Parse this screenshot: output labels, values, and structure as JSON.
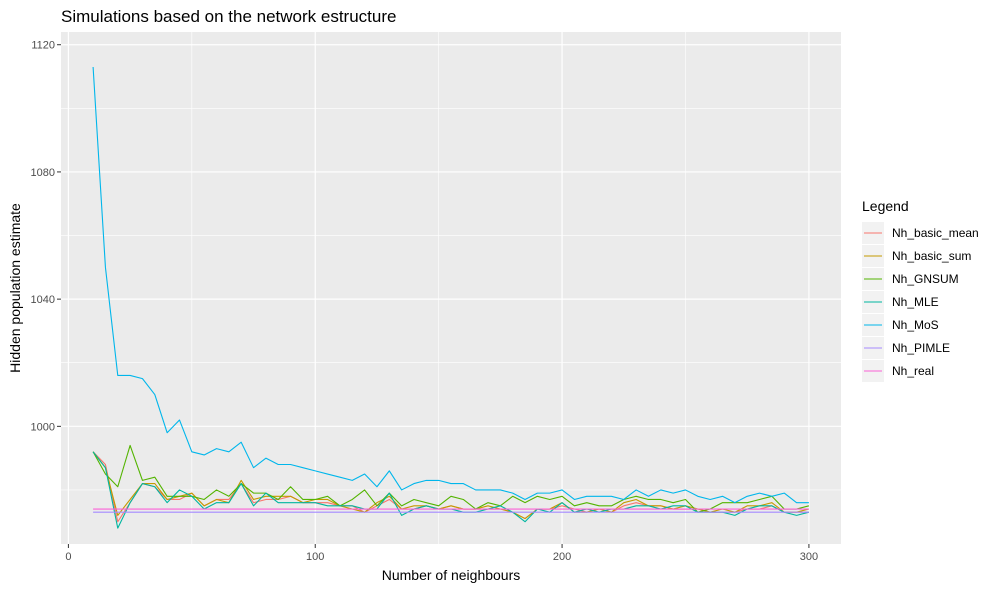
{
  "chart_data": {
    "type": "line",
    "title": "Simulations based on the network estructure",
    "xlabel": "Number of neighbours",
    "ylabel": "Hidden population estimate",
    "xlim": [
      -3,
      313
    ],
    "ylim": [
      963,
      1124
    ],
    "xticks": [
      0,
      100,
      200,
      300
    ],
    "yticks": [
      1000,
      1040,
      1080,
      1120
    ],
    "grid": true,
    "legend": {
      "title": "Legend",
      "position": "right"
    },
    "x": [
      10,
      15,
      20,
      25,
      30,
      35,
      40,
      45,
      50,
      55,
      60,
      65,
      70,
      75,
      80,
      85,
      90,
      95,
      100,
      105,
      110,
      115,
      120,
      125,
      130,
      135,
      140,
      145,
      150,
      155,
      160,
      165,
      170,
      175,
      180,
      185,
      190,
      195,
      200,
      205,
      210,
      215,
      220,
      225,
      230,
      235,
      240,
      245,
      250,
      255,
      260,
      265,
      270,
      275,
      280,
      285,
      290,
      295,
      300
    ],
    "series": [
      {
        "name": "Nh_basic_mean",
        "color": "#F8766D",
        "values": [
          992,
          988,
          970,
          976,
          982,
          981,
          977,
          977,
          979,
          975,
          977,
          977,
          982,
          976,
          977,
          977,
          978,
          976,
          976,
          976,
          975,
          975,
          973,
          975,
          977,
          974,
          974,
          975,
          974,
          975,
          974,
          974,
          974,
          974,
          973,
          971,
          974,
          974,
          975,
          974,
          973,
          974,
          973,
          975,
          976,
          975,
          975,
          974,
          974,
          974,
          973,
          973,
          973,
          974,
          974,
          975,
          973,
          973,
          973
        ]
      },
      {
        "name": "Nh_basic_sum",
        "color": "#C49A00",
        "values": [
          992,
          987,
          972,
          977,
          982,
          982,
          977,
          978,
          979,
          975,
          977,
          976,
          983,
          977,
          978,
          978,
          978,
          976,
          977,
          977,
          975,
          974,
          973,
          976,
          978,
          974,
          975,
          975,
          974,
          975,
          974,
          974,
          975,
          974,
          973,
          971,
          974,
          974,
          976,
          973,
          973,
          974,
          973,
          976,
          977,
          975,
          975,
          974,
          975,
          974,
          973,
          974,
          973,
          975,
          975,
          976,
          973,
          973,
          974
        ]
      },
      {
        "name": "Nh_GNSUM",
        "color": "#53B400",
        "values": [
          992,
          985,
          981,
          994,
          983,
          984,
          978,
          978,
          978,
          977,
          980,
          978,
          982,
          979,
          979,
          977,
          981,
          977,
          977,
          978,
          975,
          977,
          980,
          975,
          979,
          975,
          977,
          976,
          975,
          978,
          977,
          974,
          976,
          975,
          978,
          976,
          978,
          977,
          978,
          975,
          976,
          975,
          975,
          977,
          978,
          977,
          977,
          976,
          977,
          973,
          974,
          976,
          976,
          976,
          977,
          978,
          974,
          974,
          975
        ]
      },
      {
        "name": "Nh_MLE",
        "color": "#00B6A0",
        "values": [
          992,
          987,
          968,
          976,
          982,
          981,
          976,
          980,
          978,
          974,
          976,
          976,
          982,
          975,
          979,
          976,
          976,
          976,
          976,
          975,
          975,
          975,
          974,
          974,
          979,
          972,
          974,
          975,
          974,
          974,
          973,
          973,
          974,
          975,
          973,
          970,
          974,
          973,
          976,
          973,
          974,
          973,
          974,
          974,
          975,
          975,
          974,
          975,
          975,
          973,
          973,
          973,
          972,
          974,
          975,
          975,
          973,
          972,
          973
        ]
      },
      {
        "name": "Nh_MoS",
        "color": "#00B6EB",
        "values": [
          1113,
          1050,
          1016,
          1016,
          1015,
          1010,
          998,
          1002,
          992,
          991,
          993,
          992,
          995,
          987,
          990,
          988,
          988,
          987,
          986,
          985,
          984,
          983,
          985,
          981,
          986,
          980,
          982,
          983,
          983,
          982,
          982,
          980,
          980,
          980,
          979,
          977,
          979,
          979,
          980,
          977,
          978,
          978,
          978,
          977,
          980,
          978,
          980,
          979,
          980,
          978,
          977,
          978,
          976,
          978,
          979,
          978,
          979,
          976,
          976
        ]
      },
      {
        "name": "Nh_PIMLE",
        "color": "#A58AFF",
        "values": [
          973,
          973,
          973,
          973,
          973,
          973,
          973,
          973,
          973,
          973,
          973,
          973,
          973,
          973,
          973,
          973,
          973,
          973,
          973,
          973,
          973,
          973,
          973,
          973,
          973,
          973,
          973,
          973,
          973,
          973,
          973,
          973,
          973,
          973,
          973,
          973,
          973,
          973,
          973,
          973,
          973,
          973,
          973,
          973,
          973,
          973,
          973,
          973,
          973,
          973,
          973,
          973,
          973,
          973,
          973,
          973,
          973,
          973,
          973
        ]
      },
      {
        "name": "Nh_real",
        "color": "#FB61D7",
        "values": [
          974,
          974,
          974,
          974,
          974,
          974,
          974,
          974,
          974,
          974,
          974,
          974,
          974,
          974,
          974,
          974,
          974,
          974,
          974,
          974,
          974,
          974,
          974,
          974,
          974,
          974,
          974,
          974,
          974,
          974,
          974,
          974,
          974,
          974,
          974,
          974,
          974,
          974,
          974,
          974,
          974,
          974,
          974,
          974,
          974,
          974,
          974,
          974,
          974,
          974,
          974,
          974,
          974,
          974,
          974,
          974,
          974,
          974,
          974
        ]
      }
    ]
  }
}
